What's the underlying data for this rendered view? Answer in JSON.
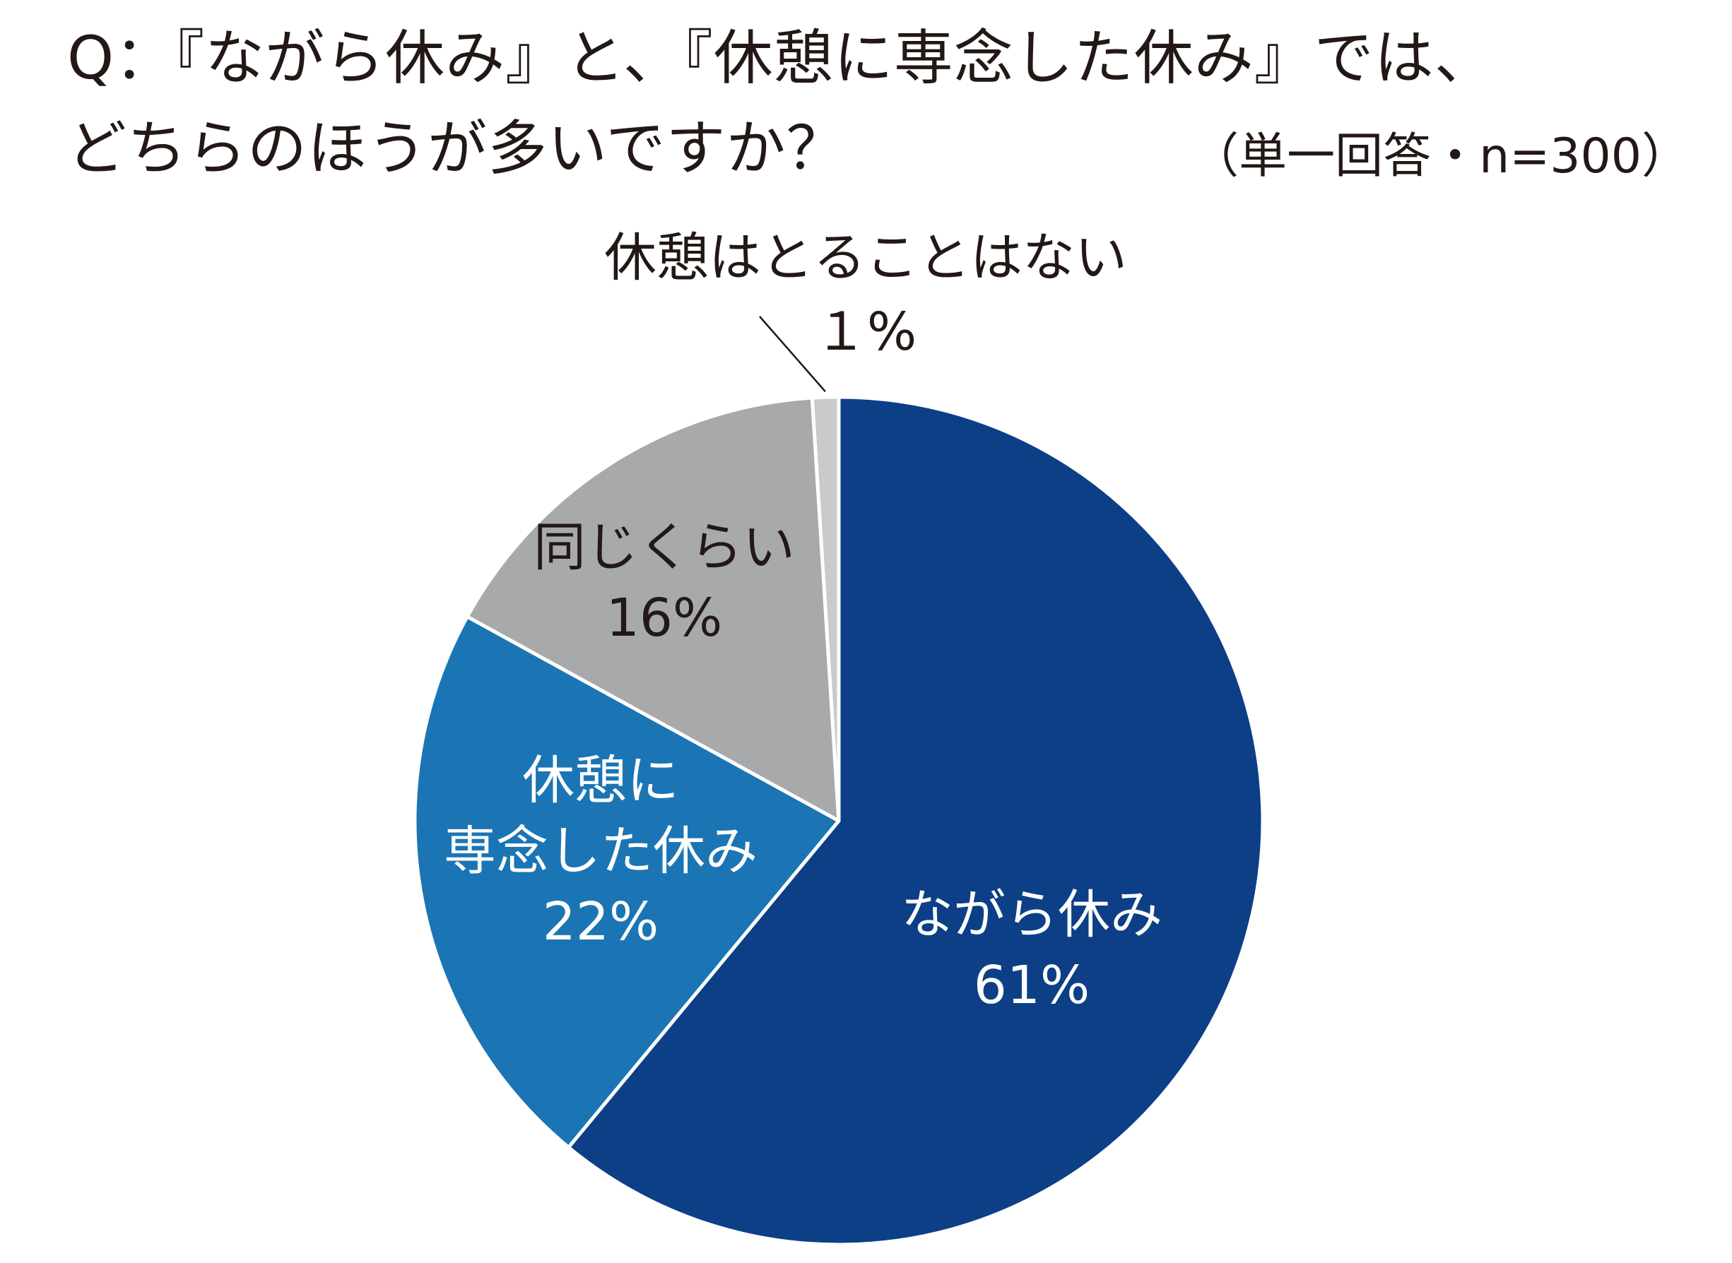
{
  "chart_data": {
    "type": "pie",
    "title_lines": [
      "Q：『ながら休み』と、『休憩に専念した休み』では、",
      "どちらのほうが多いですか？"
    ],
    "note": "（単一回答・n=300）",
    "start_angle_deg": 0,
    "direction": "clockwise",
    "slices": [
      {
        "name": "ながら休み",
        "label_lines": [
          "ながら休み"
        ],
        "value": 61,
        "value_label": "61%",
        "color": "#0d3f87",
        "text_color": "#ffffff"
      },
      {
        "name": "休憩に専念した休み",
        "label_lines": [
          "休憩に",
          "専念した休み"
        ],
        "value": 22,
        "value_label": "22%",
        "color": "#1b75b4",
        "text_color": "#ffffff"
      },
      {
        "name": "同じくらい",
        "label_lines": [
          "同じくらい"
        ],
        "value": 16,
        "value_label": "16%",
        "color": "#a8a9ab",
        "text_color": "#231815"
      },
      {
        "name": "休憩はとることはない",
        "label_lines": [
          "休憩はとることはない"
        ],
        "value": 1,
        "value_label": "１%",
        "color": "#c9caca",
        "text_color": "#231815"
      }
    ]
  }
}
